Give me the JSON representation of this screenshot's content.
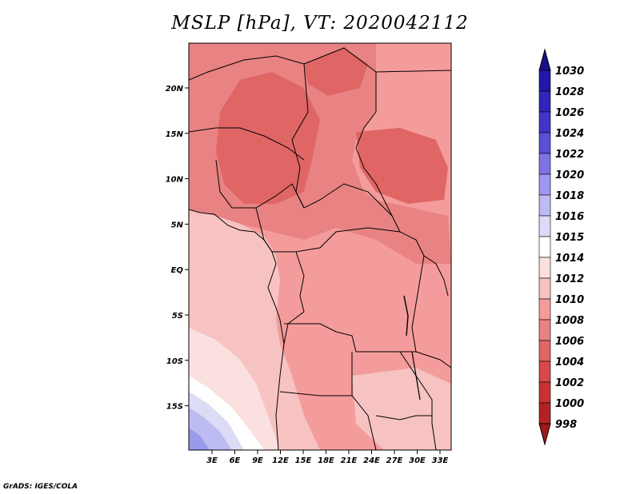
{
  "title": "MSLP [hPa], VT: 2020042112",
  "credit": "GrADS: IGES/COLA",
  "map": {
    "lon_ticks": [
      "3E",
      "6E",
      "9E",
      "12E",
      "15E",
      "18E",
      "21E",
      "24E",
      "27E",
      "30E",
      "33E"
    ],
    "lat_ticks": [
      "20N",
      "15N",
      "10N",
      "5N",
      "EQ",
      "5S",
      "10S",
      "15S"
    ],
    "colors": {
      "level_1010": "#f49c9c",
      "level_1008": "#e98282",
      "level_1006": "#e06666",
      "level_1012": "#f7c2c2",
      "level_1014": "#fbe0e0",
      "level_1015": "#ffffff",
      "level_1016": "#dcdcf7",
      "level_1018": "#bcbcf2",
      "level_1020": "#9a9aed"
    }
  },
  "colorbar": {
    "levels": [
      "1030",
      "1028",
      "1026",
      "1024",
      "1022",
      "1020",
      "1018",
      "1016",
      "1015",
      "1014",
      "1012",
      "1010",
      "1008",
      "1006",
      "1004",
      "1002",
      "1000",
      "998"
    ],
    "colors": [
      "#1a0f8a",
      "#2416a8",
      "#3322bb",
      "#4433c8",
      "#5c4fd6",
      "#7e72e4",
      "#9f98ee",
      "#bebaf4",
      "#dcdcf8",
      "#ffffff",
      "#fbe0e0",
      "#f7c2c2",
      "#f49c9c",
      "#e98282",
      "#e06666",
      "#d94848",
      "#c83232",
      "#b52020",
      "#a01818"
    ]
  }
}
